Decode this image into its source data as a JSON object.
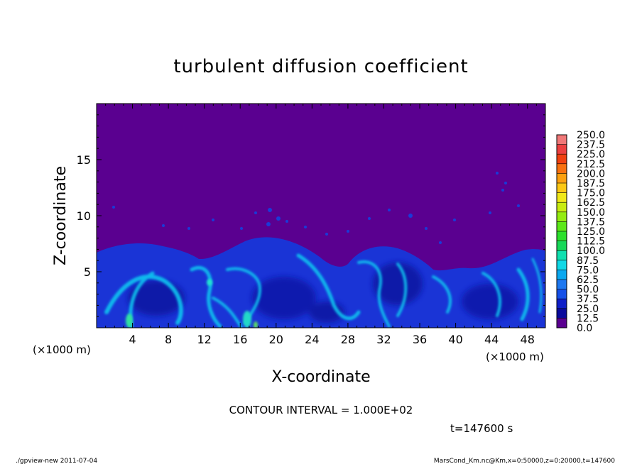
{
  "chart_data": {
    "type": "heatmap",
    "title": "turbulent diffusion coefficient",
    "xlabel": "X-coordinate",
    "ylabel": "Z-coordinate",
    "x_unit": "(×1000 m)",
    "y_unit": "(×1000 m)",
    "xlim": [
      0,
      50
    ],
    "ylim": [
      0,
      20
    ],
    "x_ticks": [
      4,
      8,
      12,
      16,
      20,
      24,
      28,
      32,
      36,
      40,
      44,
      48
    ],
    "y_ticks": [
      5,
      10,
      15
    ],
    "colorbar": {
      "levels": [
        "0.0",
        "12.5",
        "25.0",
        "37.5",
        "50.0",
        "62.5",
        "75.0",
        "87.5",
        "100.0",
        "112.5",
        "125.0",
        "137.5",
        "150.0",
        "162.5",
        "175.0",
        "187.5",
        "200.0",
        "212.5",
        "225.0",
        "237.5",
        "250.0"
      ],
      "colors": [
        "#5a0090",
        "#0a0a9c",
        "#0f1fc8",
        "#1550e8",
        "#1e78f0",
        "#0aa8f0",
        "#10d8e6",
        "#10e0b0",
        "#18d858",
        "#2ce02c",
        "#5ce818",
        "#94ec10",
        "#c8ec10",
        "#f0e818",
        "#fcc814",
        "#fca010",
        "#f87010",
        "#f04010",
        "#ec4040",
        "#f07878"
      ]
    },
    "background_value": "0.0",
    "contour_interval": "CONTOUR INTERVAL = 1.000E+02",
    "time_label": "t=147600 s"
  },
  "footer": {
    "left": "./gpview-new  2011-07-04",
    "right": "MarsCond_Km.nc@Km,x=0:50000,z=0:20000,t=147600"
  }
}
